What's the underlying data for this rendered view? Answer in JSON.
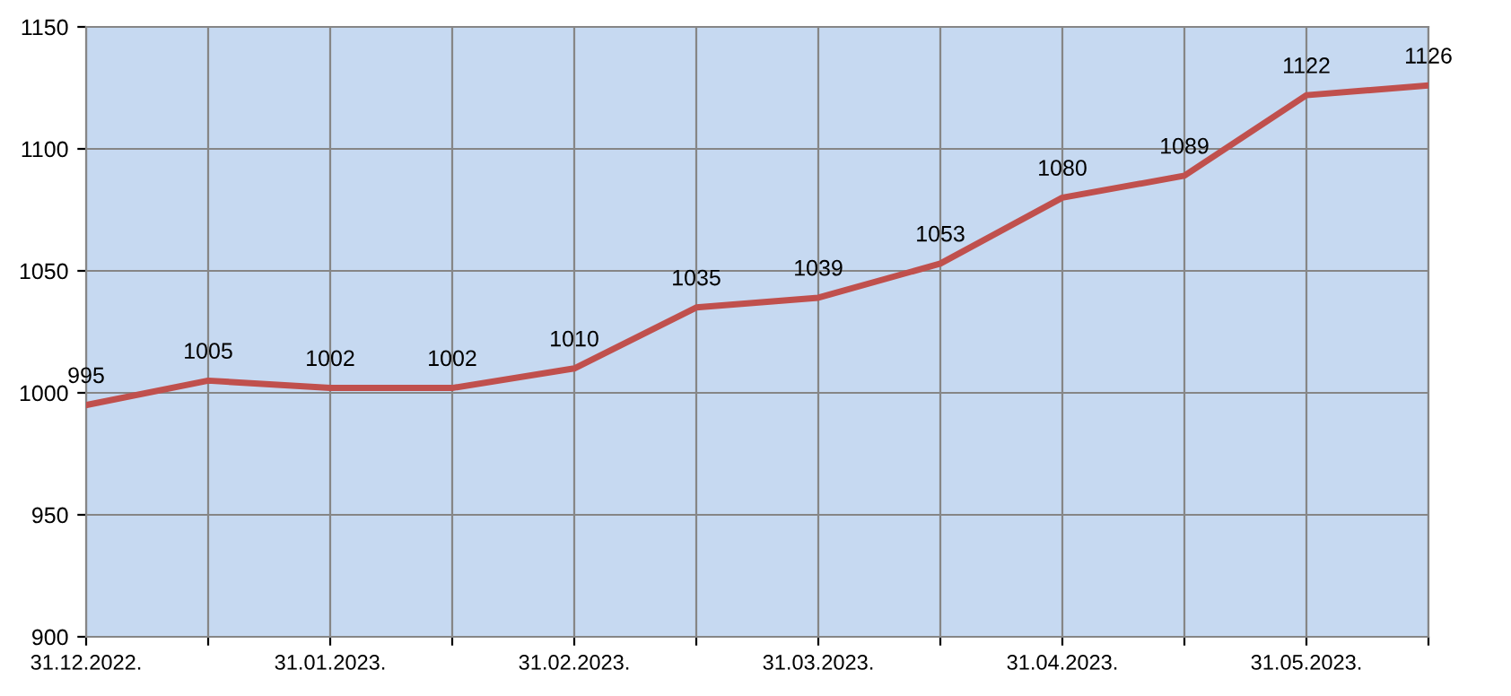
{
  "chart_data": {
    "type": "line",
    "categories": [
      "31.12.2022.",
      null,
      "31.01.2023.",
      null,
      "31.02.2023.",
      null,
      "31.03.2023.",
      null,
      "31.04.2023.",
      null,
      "31.05.2023.",
      null
    ],
    "series": [
      {
        "color": "#c0504d",
        "values": [
          995,
          1005,
          1002,
          1002,
          1010,
          1035,
          1039,
          1053,
          1080,
          1089,
          1122,
          1126
        ]
      }
    ],
    "ylim": [
      900,
      1150
    ],
    "yticks": [
      900,
      950,
      1000,
      1050,
      1100,
      1150
    ],
    "grid": true,
    "data_labels": true,
    "marker": "none",
    "line_style": "solid",
    "legend": false
  }
}
